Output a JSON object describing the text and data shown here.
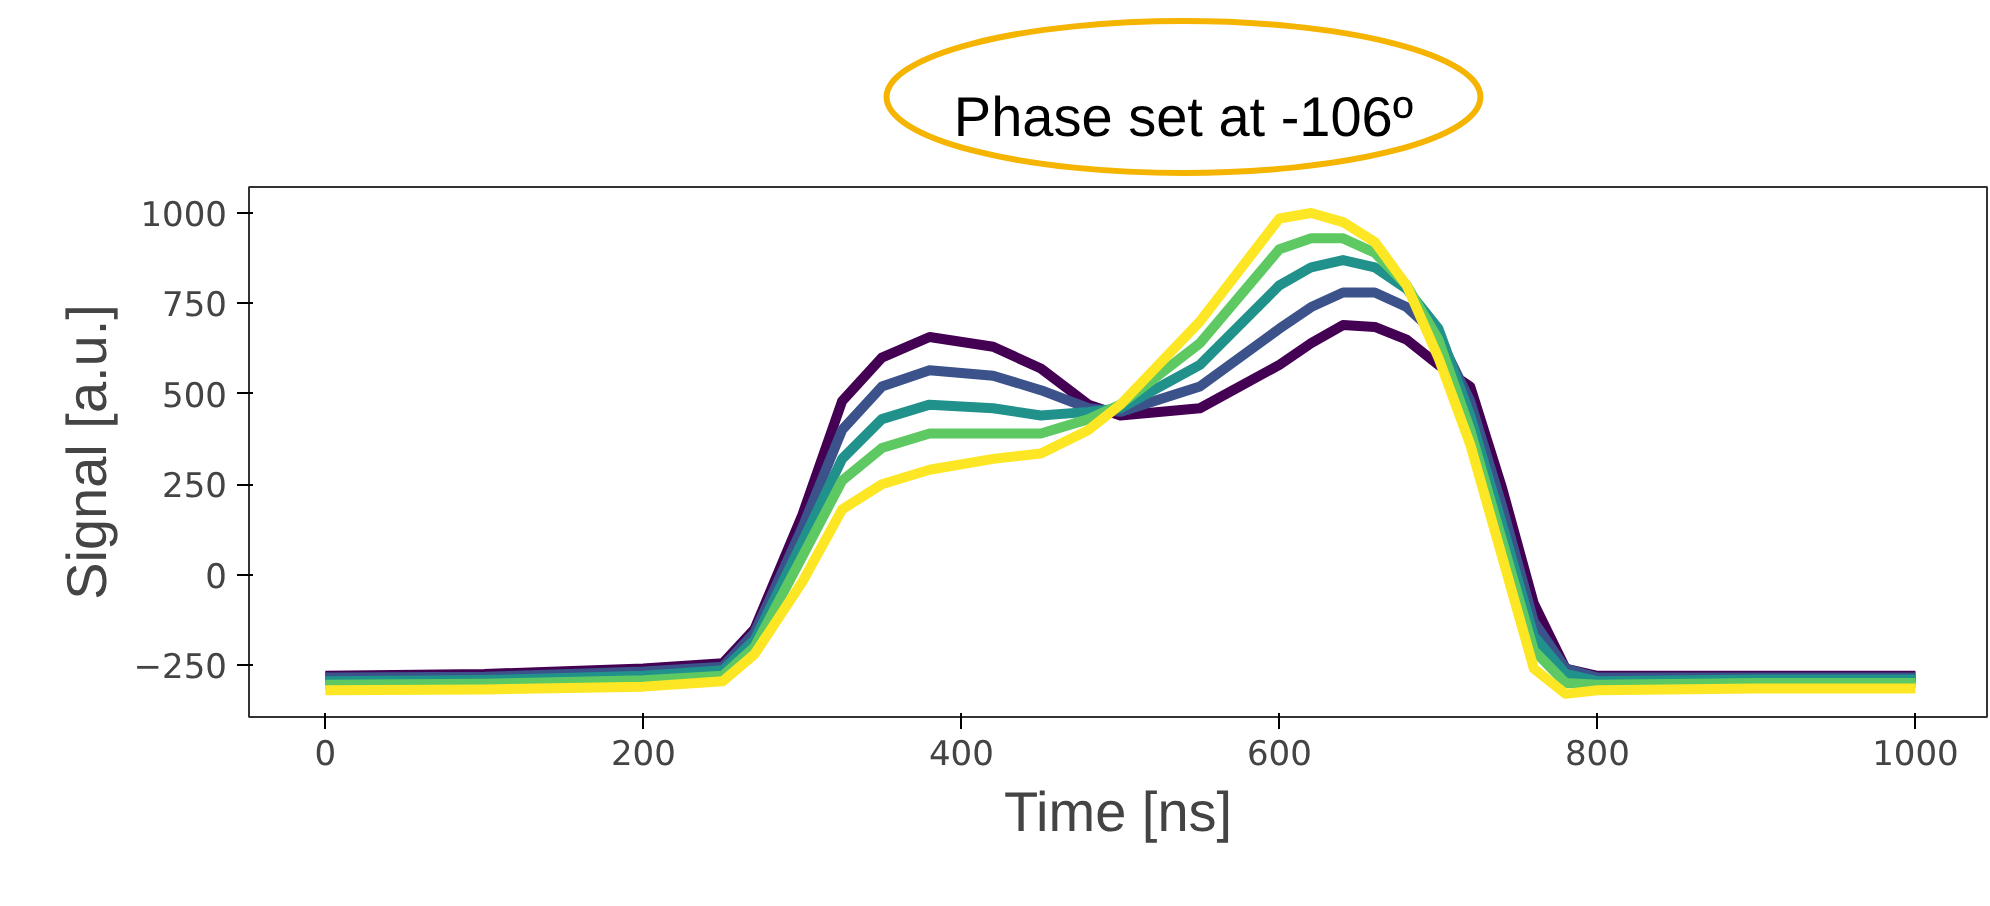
{
  "chart_data": {
    "type": "line",
    "title": "Phase set at -106º",
    "xlabel": "Time [ns]",
    "ylabel": "Signal [a.u.]",
    "x": [
      0,
      100,
      200,
      250,
      270,
      300,
      325,
      350,
      380,
      420,
      450,
      480,
      500,
      550,
      600,
      620,
      640,
      660,
      680,
      700,
      720,
      740,
      760,
      780,
      800,
      900,
      1000
    ],
    "series": [
      {
        "color": "#440154",
        "values": [
          -280,
          -275,
          -260,
          -245,
          -150,
          165,
          480,
          600,
          657,
          630,
          570,
          470,
          440,
          460,
          580,
          640,
          690,
          685,
          650,
          580,
          520,
          240,
          -80,
          -260,
          -280,
          -280,
          -280
        ]
      },
      {
        "color": "#3b528b",
        "values": [
          -285,
          -283,
          -268,
          -255,
          -160,
          130,
          400,
          520,
          565,
          550,
          510,
          460,
          450,
          520,
          680,
          740,
          780,
          780,
          740,
          660,
          480,
          190,
          -130,
          -260,
          -285,
          -285,
          -285
        ]
      },
      {
        "color": "#21918c",
        "values": [
          -295,
          -292,
          -280,
          -265,
          -180,
          90,
          320,
          430,
          470,
          460,
          440,
          450,
          460,
          580,
          800,
          850,
          870,
          850,
          790,
          680,
          440,
          140,
          -170,
          -275,
          -295,
          -290,
          -290
        ]
      },
      {
        "color": "#5ec962",
        "values": [
          -305,
          -302,
          -292,
          -280,
          -200,
          50,
          260,
          350,
          390,
          390,
          390,
          430,
          470,
          640,
          900,
          930,
          930,
          890,
          800,
          650,
          400,
          95,
          -210,
          -300,
          -305,
          -300,
          -300
        ]
      },
      {
        "color": "#fde725",
        "values": [
          -320,
          -318,
          -310,
          -295,
          -220,
          -20,
          180,
          250,
          290,
          320,
          335,
          400,
          470,
          700,
          985,
          1000,
          975,
          920,
          800,
          600,
          360,
          50,
          -260,
          -330,
          -320,
          -315,
          -315
        ]
      }
    ],
    "xlim": [
      -48,
      1045
    ],
    "ylim": [
      -394,
      1072
    ],
    "xticks": [
      0,
      200,
      400,
      600,
      800,
      1000
    ],
    "yticks": [
      -250,
      0,
      250,
      500,
      750,
      1000
    ],
    "grid": false,
    "marker": "none",
    "line_style": "solid"
  }
}
